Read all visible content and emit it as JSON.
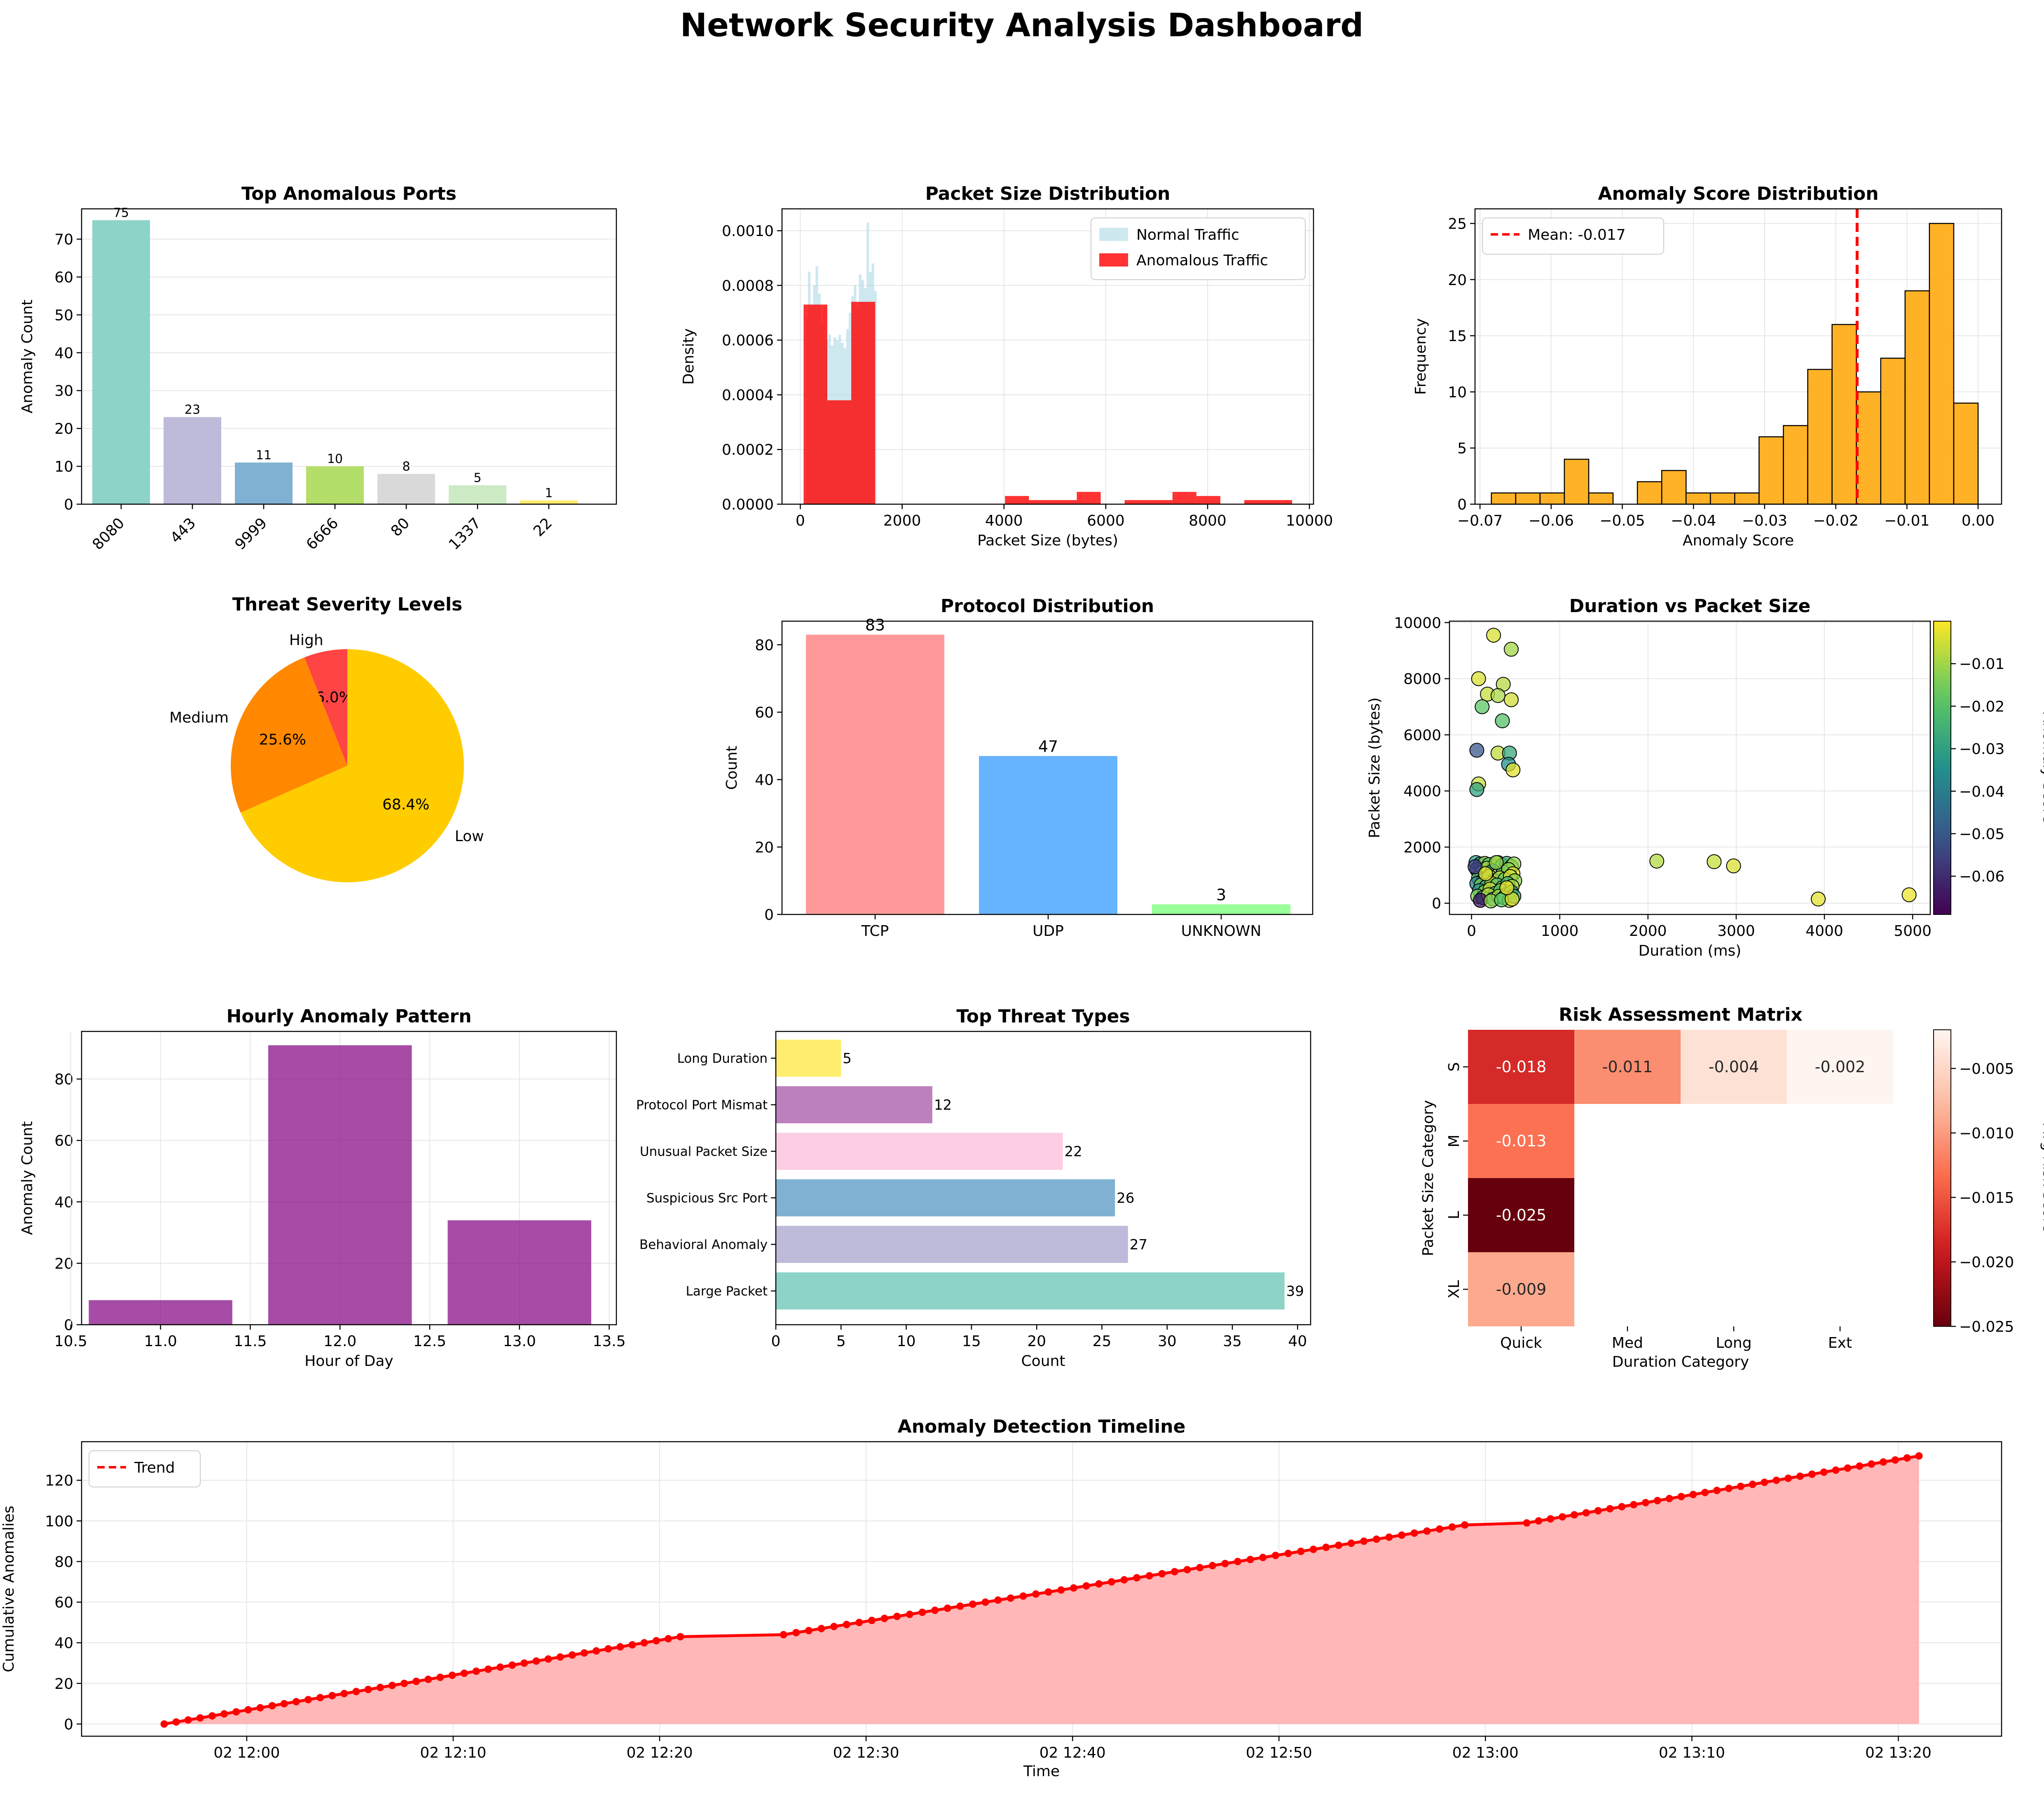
{
  "dashboard": {
    "title": "Network Security Analysis Dashboard"
  },
  "chart_data": [
    {
      "id": "ports",
      "type": "bar",
      "title": "Top Anomalous Ports",
      "xlabel": "",
      "ylabel": "Anomaly Count",
      "categories": [
        "8080",
        "443",
        "9999",
        "6666",
        "80",
        "1337",
        "22"
      ],
      "values": [
        75,
        23,
        11,
        10,
        8,
        5,
        1
      ],
      "colors": [
        "#8dd3c7",
        "#bebada",
        "#80b1d3",
        "#b3de69",
        "#d9d9d9",
        "#ccebc5",
        "#ffed6f"
      ],
      "ylim": [
        0,
        78
      ],
      "yticks": [
        0,
        10,
        20,
        30,
        40,
        50,
        60,
        70
      ],
      "grid": true
    },
    {
      "id": "packet_hist",
      "type": "bar",
      "title": "Packet Size Distribution",
      "xlabel": "Packet Size (bytes)",
      "ylabel": "Density",
      "xlim": [
        -360,
        10080
      ],
      "ylim": [
        0,
        0.00108
      ],
      "xticks": [
        0,
        2000,
        4000,
        6000,
        8000,
        10000
      ],
      "yticks": [
        0.0,
        0.0002,
        0.0004,
        0.0006,
        0.0008,
        0.001
      ],
      "ytick_labels": [
        "0.0000",
        "0.0002",
        "0.0004",
        "0.0006",
        "0.0008",
        "0.0010"
      ],
      "legend": "top-right",
      "series": [
        {
          "name": "Normal Traffic",
          "color": "#add8e6",
          "bins": [
            [
              100,
              150,
              0.00068
            ],
            [
              150,
              200,
              0.00085
            ],
            [
              200,
              250,
              0.00073
            ],
            [
              250,
              300,
              0.0008
            ],
            [
              300,
              350,
              0.00087
            ],
            [
              350,
              400,
              0.00077
            ],
            [
              400,
              450,
              0.00066
            ],
            [
              450,
              500,
              0.00072
            ],
            [
              500,
              550,
              0.0006
            ],
            [
              550,
              600,
              0.00062
            ],
            [
              600,
              650,
              0.00058
            ],
            [
              650,
              700,
              0.00061
            ],
            [
              700,
              750,
              0.0006
            ],
            [
              750,
              800,
              0.00062
            ],
            [
              800,
              850,
              0.00059
            ],
            [
              850,
              900,
              0.00057
            ],
            [
              900,
              950,
              0.00064
            ],
            [
              950,
              1000,
              0.0007
            ],
            [
              1000,
              1050,
              0.00076
            ],
            [
              1050,
              1100,
              0.0008
            ],
            [
              1100,
              1150,
              0.00072
            ],
            [
              1150,
              1200,
              0.00084
            ],
            [
              1200,
              1250,
              0.00082
            ],
            [
              1250,
              1300,
              0.00079
            ],
            [
              1300,
              1350,
              0.00103
            ],
            [
              1350,
              1400,
              0.00085
            ],
            [
              1400,
              1450,
              0.00088
            ],
            [
              1450,
              1500,
              0.00078
            ]
          ]
        },
        {
          "name": "Anomalous Traffic",
          "color": "#ff0000",
          "bins": [
            [
              64,
              530,
              0.00073
            ],
            [
              530,
              1000,
              0.00038
            ],
            [
              1000,
              1470,
              0.00074
            ],
            [
              4020,
              4490,
              3e-05
            ],
            [
              4490,
              4960,
              1.5e-05
            ],
            [
              4960,
              5430,
              1.5e-05
            ],
            [
              5430,
              5900,
              4.5e-05
            ],
            [
              6370,
              6840,
              1.5e-05
            ],
            [
              6840,
              7310,
              1.5e-05
            ],
            [
              7310,
              7780,
              4.5e-05
            ],
            [
              7780,
              8250,
              3e-05
            ],
            [
              8720,
              9190,
              1.5e-05
            ],
            [
              9190,
              9660,
              1.5e-05
            ]
          ]
        }
      ]
    },
    {
      "id": "score_hist",
      "type": "bar",
      "title": "Anomaly Score Distribution",
      "xlabel": "Anomaly Score",
      "ylabel": "Frequency",
      "xlim": [
        -0.0707,
        0.0033
      ],
      "ylim": [
        0,
        26.3
      ],
      "xticks": [
        -0.07,
        -0.06,
        -0.05,
        -0.04,
        -0.03,
        -0.02,
        -0.01,
        0.0
      ],
      "xtick_labels": [
        "−0.07",
        "−0.06",
        "−0.05",
        "−0.04",
        "−0.03",
        "−0.02",
        "−0.01",
        "0.00"
      ],
      "yticks": [
        0,
        5,
        10,
        15,
        20,
        25
      ],
      "bin_start": -0.0684,
      "bin_width": 0.00342,
      "counts": [
        1,
        1,
        1,
        4,
        1,
        0,
        2,
        3,
        1,
        1,
        1,
        6,
        7,
        12,
        16,
        10,
        13,
        19,
        25,
        9
      ],
      "color": "#ffa500",
      "mean": -0.017,
      "mean_label": "Mean: -0.017",
      "legend": "top-left"
    },
    {
      "id": "severity",
      "type": "pie",
      "title": "Threat Severity Levels",
      "labels": [
        "High",
        "Medium",
        "Low"
      ],
      "values": [
        6.0,
        25.6,
        68.4
      ],
      "pct_labels": [
        "6.0%",
        "25.6%",
        "68.4%"
      ],
      "colors": [
        "#ff4444",
        "#ff8800",
        "#ffcc00"
      ]
    },
    {
      "id": "protocol",
      "type": "bar",
      "title": "Protocol Distribution",
      "xlabel": "",
      "ylabel": "Count",
      "categories": [
        "TCP",
        "UDP",
        "UNKNOWN"
      ],
      "values": [
        83,
        47,
        3
      ],
      "colors": [
        "#ff9999",
        "#66b3ff",
        "#99ff99"
      ],
      "ylim": [
        0,
        87
      ],
      "yticks": [
        0,
        20,
        40,
        60,
        80
      ]
    },
    {
      "id": "scatter",
      "type": "scatter",
      "title": "Duration vs Packet Size",
      "xlabel": "Duration (ms)",
      "ylabel": "Packet Size (bytes)",
      "xlim": [
        -250,
        5200
      ],
      "ylim": [
        -400,
        10050
      ],
      "xticks": [
        0,
        1000,
        2000,
        3000,
        4000,
        5000
      ],
      "yticks": [
        0,
        2000,
        4000,
        6000,
        8000,
        10000
      ],
      "colorbar_label": "Anomaly Score",
      "clim": [
        -0.069,
        0.0
      ],
      "colorbar_ticks": [
        -0.01,
        -0.02,
        -0.03,
        -0.04,
        -0.05,
        -0.06
      ],
      "colorbar_tick_labels": [
        "−0.01",
        "−0.02",
        "−0.03",
        "−0.04",
        "−0.05",
        "−0.06"
      ],
      "points": [
        [
          250,
          9550,
          -0.004
        ],
        [
          450,
          9050,
          -0.01
        ],
        [
          80,
          8000,
          -0.004
        ],
        [
          360,
          7800,
          -0.008
        ],
        [
          180,
          7450,
          -0.006
        ],
        [
          300,
          7400,
          -0.009
        ],
        [
          450,
          7250,
          -0.005
        ],
        [
          120,
          7000,
          -0.018
        ],
        [
          350,
          6500,
          -0.02
        ],
        [
          60,
          5450,
          -0.05
        ],
        [
          300,
          5350,
          -0.007
        ],
        [
          430,
          5350,
          -0.028
        ],
        [
          420,
          4950,
          -0.035
        ],
        [
          470,
          4750,
          -0.003
        ],
        [
          80,
          4250,
          -0.006
        ],
        [
          60,
          4050,
          -0.03
        ],
        [
          2100,
          1500,
          -0.008
        ],
        [
          2750,
          1480,
          -0.006
        ],
        [
          2970,
          1330,
          -0.004
        ],
        [
          3930,
          150,
          -0.003
        ],
        [
          4960,
          300,
          -0.002
        ],
        [
          50,
          1450,
          -0.03
        ],
        [
          100,
          1400,
          -0.04
        ],
        [
          150,
          1420,
          -0.012
        ],
        [
          200,
          1380,
          -0.02
        ],
        [
          250,
          1300,
          -0.009
        ],
        [
          300,
          1450,
          -0.005
        ],
        [
          350,
          1350,
          -0.015
        ],
        [
          400,
          1420,
          -0.025
        ],
        [
          450,
          1300,
          -0.008
        ],
        [
          480,
          1400,
          -0.012
        ],
        [
          60,
          1200,
          -0.06
        ],
        [
          120,
          1100,
          -0.018
        ],
        [
          180,
          1250,
          -0.01
        ],
        [
          240,
          1150,
          -0.035
        ],
        [
          300,
          1000,
          -0.006
        ],
        [
          360,
          1100,
          -0.02
        ],
        [
          420,
          1200,
          -0.012
        ],
        [
          470,
          1050,
          -0.004
        ],
        [
          80,
          900,
          -0.022
        ],
        [
          140,
          850,
          -0.045
        ],
        [
          200,
          950,
          -0.01
        ],
        [
          260,
          800,
          -0.03
        ],
        [
          320,
          900,
          -0.008
        ],
        [
          380,
          850,
          -0.016
        ],
        [
          440,
          950,
          -0.005
        ],
        [
          490,
          800,
          -0.012
        ],
        [
          60,
          700,
          -0.04
        ],
        [
          110,
          650,
          -0.015
        ],
        [
          170,
          600,
          -0.028
        ],
        [
          230,
          700,
          -0.007
        ],
        [
          290,
          650,
          -0.019
        ],
        [
          350,
          550,
          -0.011
        ],
        [
          410,
          700,
          -0.024
        ],
        [
          460,
          600,
          -0.009
        ],
        [
          90,
          450,
          -0.033
        ],
        [
          150,
          400,
          -0.013
        ],
        [
          210,
          500,
          -0.006
        ],
        [
          270,
          350,
          -0.021
        ],
        [
          330,
          450,
          -0.017
        ],
        [
          390,
          300,
          -0.009
        ],
        [
          450,
          400,
          -0.03
        ],
        [
          70,
          250,
          -0.014
        ],
        [
          130,
          200,
          -0.038
        ],
        [
          190,
          300,
          -0.008
        ],
        [
          250,
          150,
          -0.022
        ],
        [
          310,
          250,
          -0.011
        ],
        [
          370,
          200,
          -0.016
        ],
        [
          430,
          100,
          -0.005
        ],
        [
          480,
          250,
          -0.026
        ],
        [
          100,
          100,
          -0.065
        ],
        [
          220,
          80,
          -0.012
        ],
        [
          340,
          120,
          -0.018
        ],
        [
          460,
          150,
          -0.004
        ],
        [
          40,
          1300,
          -0.055
        ],
        [
          400,
          550,
          -0.002
        ],
        [
          280,
          1450,
          -0.012
        ],
        [
          160,
          1050,
          -0.003
        ]
      ]
    },
    {
      "id": "hourly",
      "type": "bar",
      "title": "Hourly Anomaly Pattern",
      "xlabel": "Hour of Day",
      "ylabel": "Anomaly Count",
      "x": [
        11,
        12,
        13
      ],
      "values": [
        8,
        91,
        34
      ],
      "color": "#800080",
      "xlim": [
        10.56,
        13.54
      ],
      "ylim": [
        0,
        95.5
      ],
      "xticks": [
        10.5,
        11.0,
        11.5,
        12.0,
        12.5,
        13.0,
        13.5
      ],
      "xtick_labels": [
        "10.5",
        "11.0",
        "11.5",
        "12.0",
        "12.5",
        "13.0",
        "13.5"
      ],
      "yticks": [
        0,
        20,
        40,
        60,
        80
      ]
    },
    {
      "id": "threats",
      "type": "bar",
      "title": "Top Threat Types",
      "xlabel": "Count",
      "ylabel": "",
      "orientation": "horizontal",
      "categories": [
        "Large Packet",
        "Behavioral Anomaly",
        "Suspicious Src Port",
        "Unusual Packet Size",
        "Protocol Port Mismat",
        "Long Duration"
      ],
      "values": [
        39,
        27,
        26,
        22,
        12,
        5
      ],
      "colors": [
        "#8dd3c7",
        "#bebada",
        "#80b1d3",
        "#fccde5",
        "#bc80bd",
        "#ffed6f"
      ],
      "xlim": [
        0,
        41
      ],
      "xticks": [
        0,
        5,
        10,
        15,
        20,
        25,
        30,
        35,
        40
      ]
    },
    {
      "id": "risk",
      "type": "heatmap",
      "title": "Risk Assessment Matrix",
      "xlabel": "Duration Category",
      "ylabel": "Packet Size Category",
      "columns": [
        "Quick",
        "Med",
        "Long",
        "Ext"
      ],
      "rows": [
        "S",
        "M",
        "L",
        "XL"
      ],
      "values": [
        [
          -0.018,
          -0.011,
          -0.004,
          -0.002
        ],
        [
          -0.013,
          null,
          null,
          null
        ],
        [
          -0.025,
          null,
          null,
          null
        ],
        [
          -0.009,
          null,
          null,
          null
        ]
      ],
      "value_labels": [
        [
          "-0.018",
          "-0.011",
          "-0.004",
          "-0.002"
        ],
        [
          "-0.013",
          "",
          "",
          ""
        ],
        [
          "-0.025",
          "",
          "",
          ""
        ],
        [
          "-0.009",
          "",
          "",
          ""
        ]
      ],
      "colorbar_label": "Avg Risk Score",
      "clim": [
        -0.025,
        -0.002
      ],
      "colorbar_ticks": [
        -0.005,
        -0.01,
        -0.015,
        -0.02,
        -0.025
      ],
      "colorbar_tick_labels": [
        "−0.005",
        "−0.010",
        "−0.015",
        "−0.020",
        "−0.025"
      ]
    },
    {
      "id": "timeline",
      "type": "line",
      "title": "Anomaly Detection Timeline",
      "xlabel": "Time",
      "ylabel": "Cumulative Anomalies",
      "x_start": "2024-01-02 11:56",
      "x_end": "2024-01-02 13:21",
      "points": 133,
      "segments": [
        {
          "t0": "2024-01-02 11:56",
          "t1": "2024-01-02 12:21",
          "v0": 0,
          "v1": 43
        },
        {
          "t0": "2024-01-02 12:26",
          "t1": "2024-01-02 12:59",
          "v0": 44,
          "v1": 98
        },
        {
          "t0": "2024-01-02 13:02",
          "t1": "2024-01-02 13:21",
          "v0": 99,
          "v1": 132
        }
      ],
      "xlim": [
        "2024-01-02 11:52",
        "2024-01-02 13:25"
      ],
      "ylim": [
        -6,
        139
      ],
      "xticks": [
        "2024-01-02 12:00",
        "2024-01-02 12:10",
        "2024-01-02 12:20",
        "2024-01-02 12:30",
        "2024-01-02 12:40",
        "2024-01-02 12:50",
        "2024-01-02 13:00",
        "2024-01-02 13:10",
        "2024-01-02 13:20"
      ],
      "xtick_labels": [
        "02 12:00",
        "02 12:10",
        "02 12:20",
        "02 12:30",
        "02 12:40",
        "02 12:50",
        "02 13:00",
        "02 13:10",
        "02 13:20"
      ],
      "yticks": [
        0,
        20,
        40,
        60,
        80,
        100,
        120
      ],
      "series": [
        {
          "name": "Trend",
          "color": "#ff0000"
        }
      ],
      "fill_color": "#ffb3b3",
      "legend": "top-left"
    }
  ]
}
